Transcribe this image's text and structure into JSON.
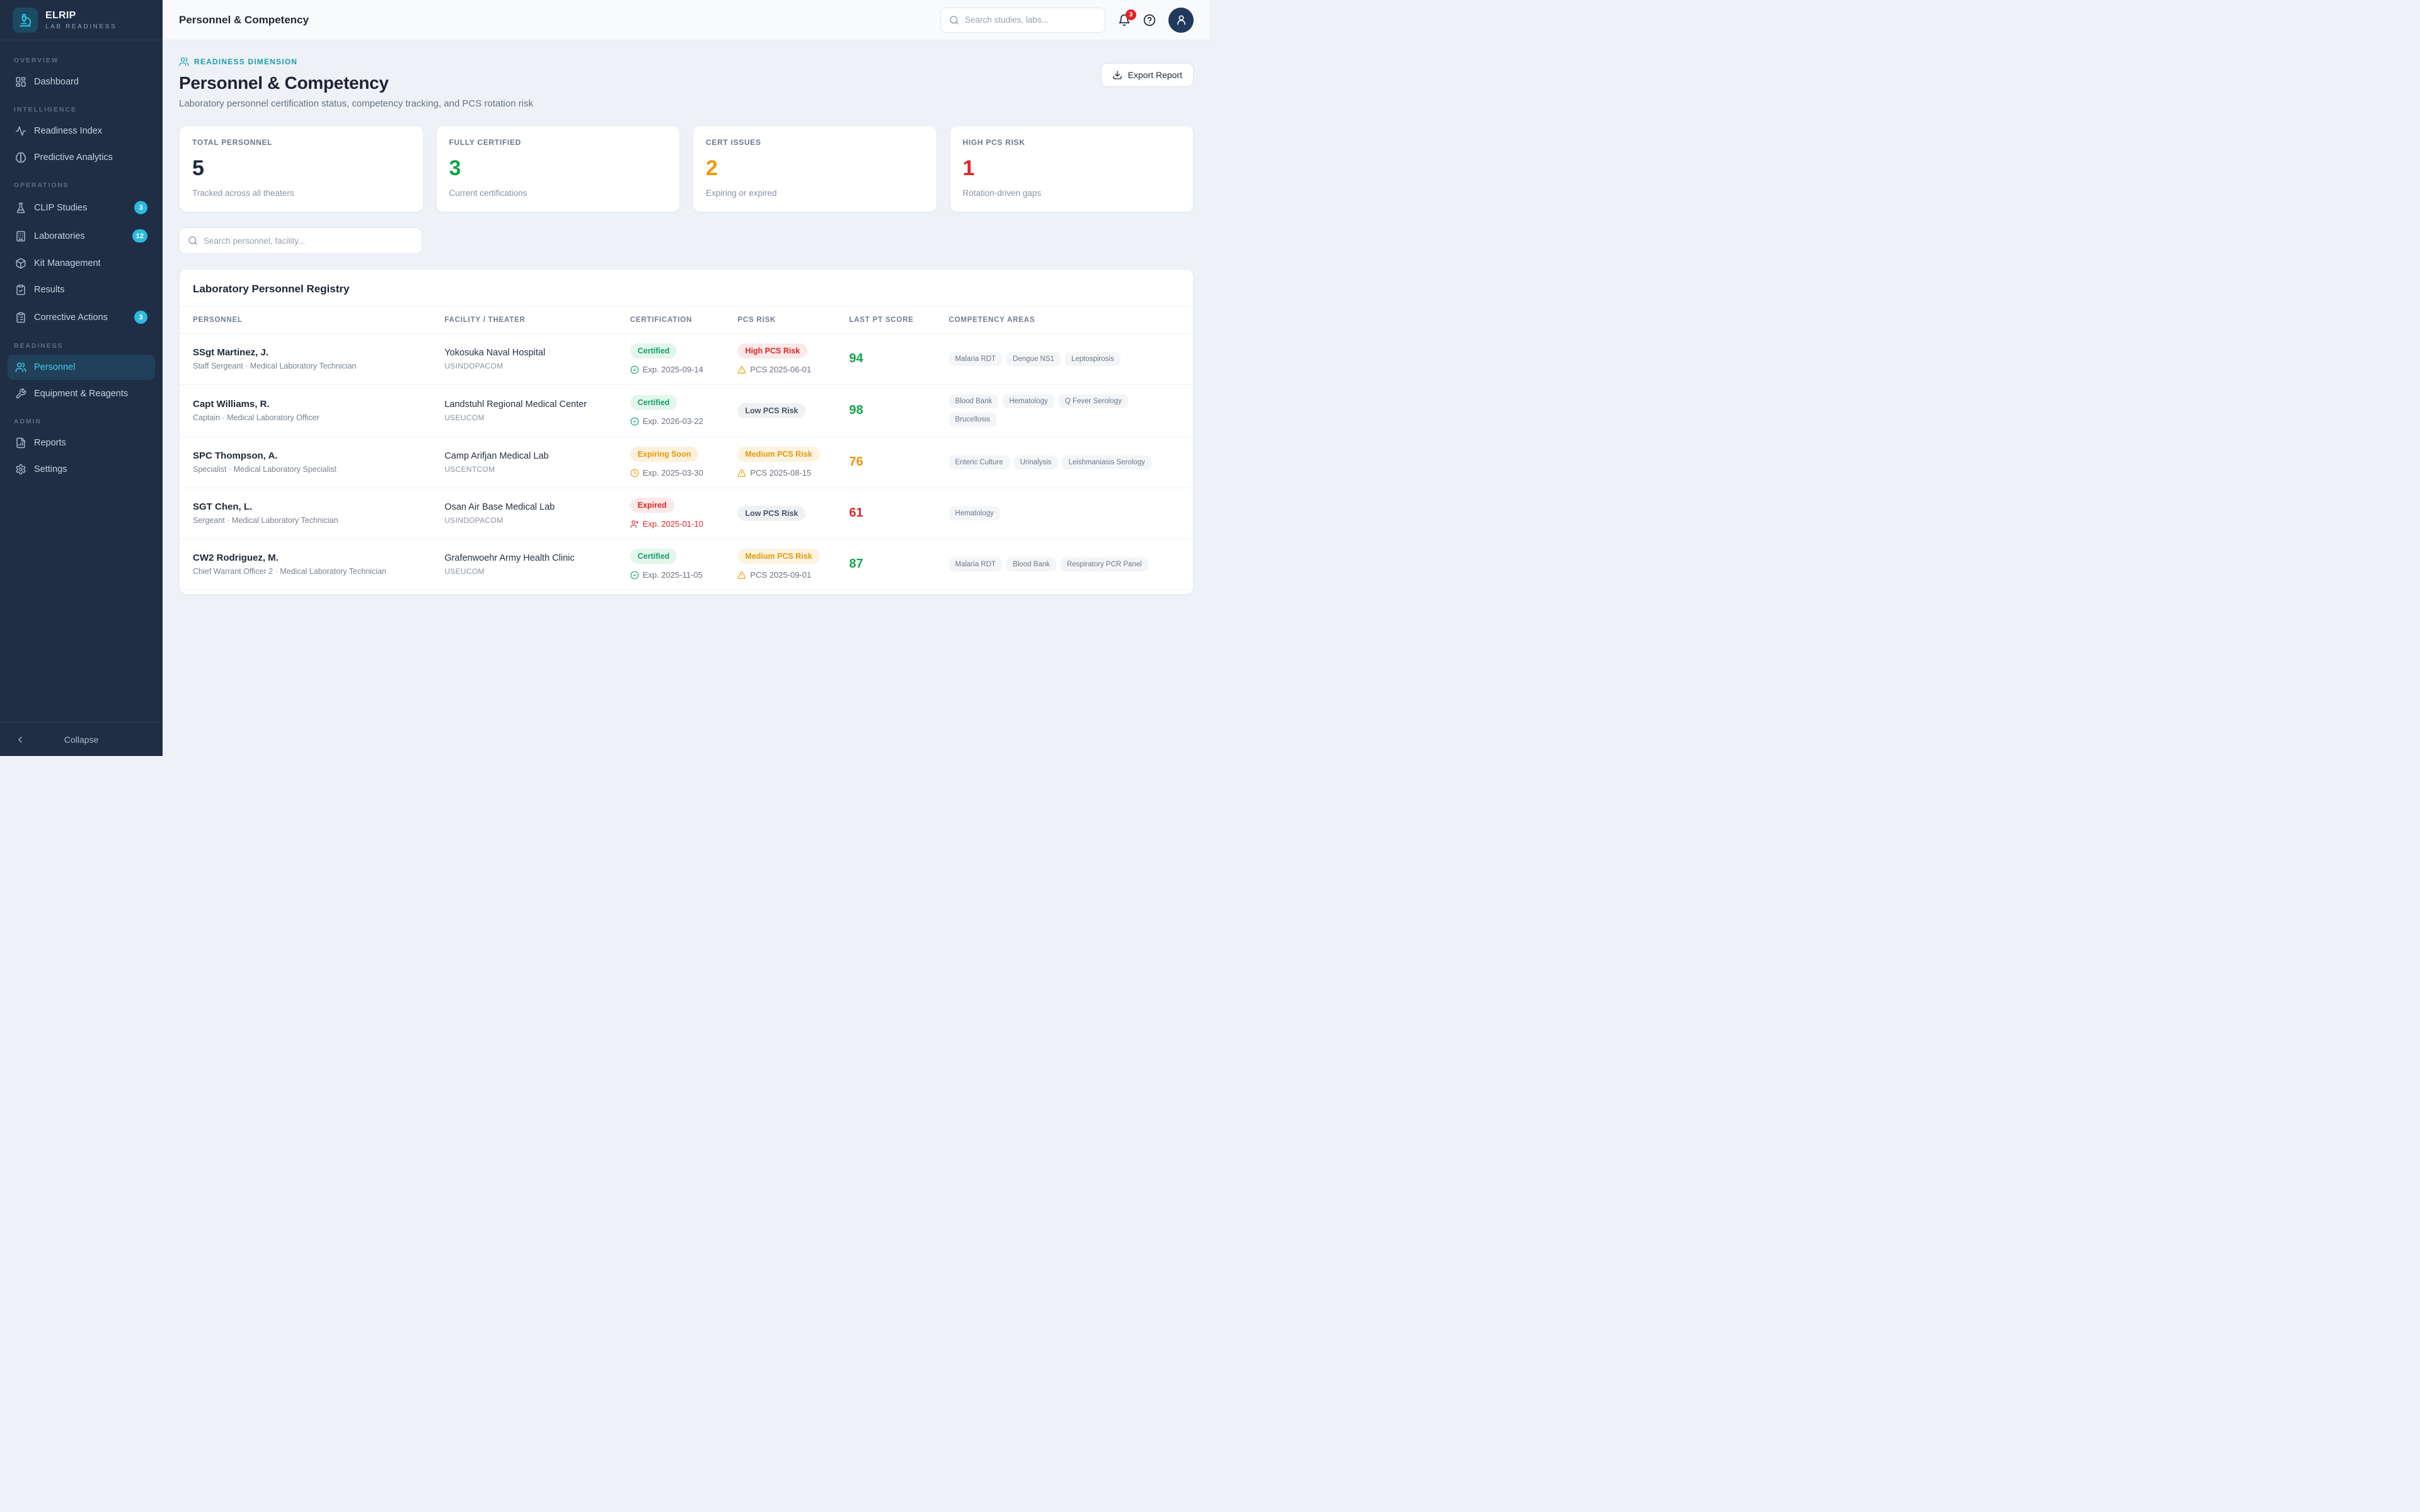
{
  "brand": {
    "name": "ELRIP",
    "tagline": "LAB READINESS"
  },
  "sidebar": {
    "sections": [
      {
        "label": "OVERVIEW",
        "items": [
          {
            "label": "Dashboard",
            "icon": "dashboard"
          }
        ]
      },
      {
        "label": "INTELLIGENCE",
        "items": [
          {
            "label": "Readiness Index",
            "icon": "activity"
          },
          {
            "label": "Predictive Analytics",
            "icon": "brain"
          }
        ]
      },
      {
        "label": "OPERATIONS",
        "items": [
          {
            "label": "CLIP Studies",
            "icon": "flask",
            "badge": "3"
          },
          {
            "label": "Laboratories",
            "icon": "building",
            "badge": "12"
          },
          {
            "label": "Kit Management",
            "icon": "box"
          },
          {
            "label": "Results",
            "icon": "clipboard-check"
          },
          {
            "label": "Corrective Actions",
            "icon": "clipboard-list",
            "badge": "3"
          }
        ]
      },
      {
        "label": "READINESS",
        "items": [
          {
            "label": "Personnel",
            "icon": "users",
            "active": true
          },
          {
            "label": "Equipment & Reagents",
            "icon": "wrench"
          }
        ]
      },
      {
        "label": "ADMIN",
        "items": [
          {
            "label": "Reports",
            "icon": "file-chart"
          },
          {
            "label": "Settings",
            "icon": "gear"
          }
        ]
      }
    ],
    "collapse_label": "Collapse"
  },
  "header": {
    "title": "Personnel & Competency",
    "search_placeholder": "Search studies, labs...",
    "notification_count": "3"
  },
  "page": {
    "breadcrumb": "READINESS DIMENSION",
    "title": "Personnel & Competency",
    "subtitle": "Laboratory personnel certification status, competency tracking, and PCS rotation risk",
    "export_label": "Export Report",
    "filter_placeholder": "Search personnel, facility..."
  },
  "stats": [
    {
      "label": "TOTAL PERSONNEL",
      "value": "5",
      "desc": "Tracked across all theaters",
      "color": "#1e293b"
    },
    {
      "label": "FULLY CERTIFIED",
      "value": "3",
      "desc": "Current certifications",
      "color": "#16a34a"
    },
    {
      "label": "CERT ISSUES",
      "value": "2",
      "desc": "Expiring or expired",
      "color": "#f0980b"
    },
    {
      "label": "HIGH PCS RISK",
      "value": "1",
      "desc": "Rotation-driven gaps",
      "color": "#dc2626"
    }
  ],
  "registry": {
    "title": "Laboratory Personnel Registry",
    "columns": [
      "PERSONNEL",
      "FACILITY / THEATER",
      "CERTIFICATION",
      "PCS RISK",
      "LAST PT SCORE",
      "COMPETENCY AREAS"
    ],
    "rows": [
      {
        "name": "SSgt Martinez, J.",
        "role": "Staff Sergeant · Medical Laboratory Technician",
        "facility": "Yokosuka Naval Hospital",
        "theater": "USINDOPACOM",
        "cert": {
          "label": "Certified",
          "kind": "certified",
          "date": "Exp. 2025-09-14"
        },
        "pcs": {
          "label": "High PCS Risk",
          "kind": "high",
          "date": "PCS 2025-06-01"
        },
        "score": {
          "value": "94",
          "color": "#16a34a"
        },
        "tags": [
          "Malaria RDT",
          "Dengue NS1",
          "Leptospirosis"
        ]
      },
      {
        "name": "Capt Williams, R.",
        "role": "Captain · Medical Laboratory Officer",
        "facility": "Landstuhl Regional Medical Center",
        "theater": "USEUCOM",
        "cert": {
          "label": "Certified",
          "kind": "certified",
          "date": "Exp. 2026-03-22"
        },
        "pcs": {
          "label": "Low PCS Risk",
          "kind": "low",
          "date": ""
        },
        "score": {
          "value": "98",
          "color": "#16a34a"
        },
        "tags": [
          "Blood Bank",
          "Hematology",
          "Q Fever Serology",
          "Brucellosis"
        ]
      },
      {
        "name": "SPC Thompson, A.",
        "role": "Specialist · Medical Laboratory Specialist",
        "facility": "Camp Arifjan Medical Lab",
        "theater": "USCENTCOM",
        "cert": {
          "label": "Expiring Soon",
          "kind": "expiring",
          "date": "Exp. 2025-03-30"
        },
        "pcs": {
          "label": "Medium PCS Risk",
          "kind": "medium",
          "date": "PCS 2025-08-15"
        },
        "score": {
          "value": "76",
          "color": "#e8960c"
        },
        "tags": [
          "Enteric Culture",
          "Urinalysis",
          "Leishmaniasis Serology"
        ]
      },
      {
        "name": "SGT Chen, L.",
        "role": "Sergeant · Medical Laboratory Technician",
        "facility": "Osan Air Base Medical Lab",
        "theater": "USINDOPACOM",
        "cert": {
          "label": "Expired",
          "kind": "expired",
          "date": "Exp. 2025-01-10"
        },
        "pcs": {
          "label": "Low PCS Risk",
          "kind": "low",
          "date": ""
        },
        "score": {
          "value": "61",
          "color": "#dc2626"
        },
        "tags": [
          "Hematology"
        ]
      },
      {
        "name": "CW2 Rodriguez, M.",
        "role": "Chief Warrant Officer 2 · Medical Laboratory Technician",
        "facility": "Grafenwoehr Army Health Clinic",
        "theater": "USEUCOM",
        "cert": {
          "label": "Certified",
          "kind": "certified",
          "date": "Exp. 2025-11-05"
        },
        "pcs": {
          "label": "Medium PCS Risk",
          "kind": "medium",
          "date": "PCS 2025-09-01"
        },
        "score": {
          "value": "87",
          "color": "#16a34a"
        },
        "tags": [
          "Malaria RDT",
          "Blood Bank",
          "Respiratory PCR Panel"
        ]
      }
    ]
  }
}
